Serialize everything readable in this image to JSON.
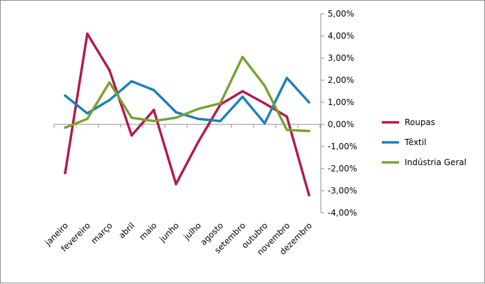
{
  "chart_data": {
    "type": "line",
    "categories": [
      "janeiro",
      "fevereiro",
      "março",
      "abril",
      "maio",
      "junho",
      "julho",
      "agosto",
      "setembro",
      "outubro",
      "novembro",
      "dezembro"
    ],
    "y_ticks": [
      "5,00%",
      "4,00%",
      "3,00%",
      "2,00%",
      "1,00%",
      "0,00%",
      "-1,00%",
      "-2,00%",
      "-3,00%",
      "-4,00%"
    ],
    "ylim": [
      -4,
      5
    ],
    "y_axis_position": "right",
    "grid": false,
    "legend_position": "right",
    "series": [
      {
        "name": "Roupas",
        "color": "#B5174E",
        "values": [
          -2.2,
          4.1,
          2.45,
          -0.5,
          0.65,
          -2.7,
          -0.8,
          0.9,
          1.5,
          0.95,
          0.35,
          -3.2
        ]
      },
      {
        "name": "Têxtil",
        "color": "#1A7FBF",
        "values": [
          1.3,
          0.5,
          1.1,
          1.95,
          1.55,
          0.55,
          0.25,
          0.15,
          1.25,
          0.05,
          2.1,
          1.0
        ]
      },
      {
        "name": "Indústria Geral",
        "color": "#78A22F",
        "values": [
          -0.15,
          0.25,
          1.9,
          0.3,
          0.15,
          0.3,
          0.7,
          0.95,
          3.05,
          1.75,
          -0.25,
          -0.3
        ]
      }
    ]
  }
}
